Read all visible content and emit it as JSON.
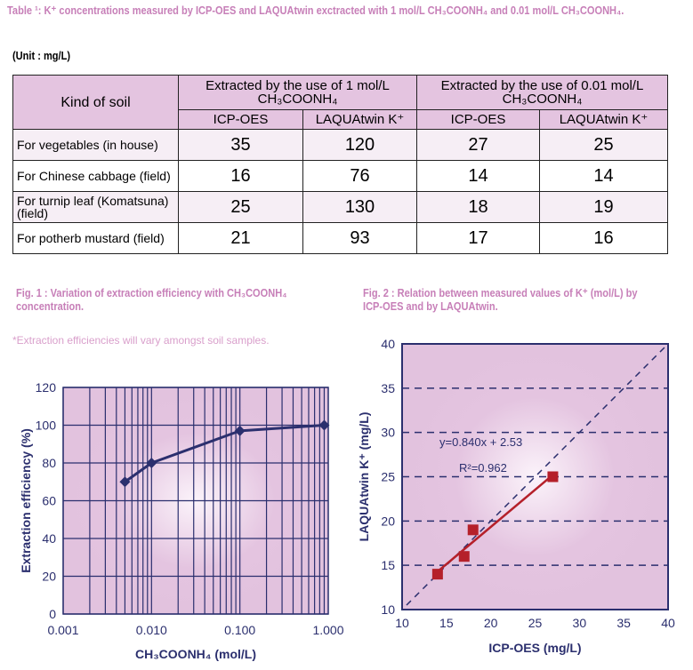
{
  "table": {
    "caption": "Table ¹: K⁺ concentrations measured by ICP-OES and LAQUAtwin exctracted with 1 mol/L CH₃COONH₄ and 0.01 mol/L CH₃COONH₄.",
    "unit": "(Unit : mg/L)",
    "col_kind": "Kind of soil",
    "group1": "Extracted by the use of 1 mol/L CH₃COONH₄",
    "group2": "Extracted by the use of 0.01 mol/L CH₃COONH₄",
    "sub": [
      "ICP-OES",
      "LAQUAtwin K⁺",
      "ICP-OES",
      "LAQUAtwin K⁺"
    ],
    "rows": [
      {
        "kind": "For vegetables (in house)",
        "v": [
          "35",
          "120",
          "27",
          "25"
        ]
      },
      {
        "kind": "For Chinese cabbage (field)",
        "v": [
          "16",
          "76",
          "14",
          "14"
        ]
      },
      {
        "kind": "For turnip leaf (Komatsuna)(field)",
        "v": [
          "25",
          "130",
          "18",
          "19"
        ]
      },
      {
        "kind": "For potherb mustard (field)",
        "v": [
          "21",
          "93",
          "17",
          "16"
        ]
      }
    ]
  },
  "fig1_caption": "Fig. 1 : Variation of extraction efficiency with CH₃COONH₄ concentration.",
  "fig1_note": "*Extraction efficiencies will vary amongst soil samples.",
  "fig2_caption": "Fig. 2 : Relation between measured values of K⁺ (mol/L) by ICP-OES and by LAQUAtwin.",
  "chart_data": [
    {
      "type": "line",
      "title": "Fig. 1",
      "xlabel": "CH₃COONH₄ (mol/L)",
      "ylabel": "Extraction efficiency (%)",
      "xscale": "log",
      "xlim": [
        0.001,
        1
      ],
      "ylim": [
        0,
        120
      ],
      "xticks": [
        "0.001",
        "0.010",
        "0.100",
        "1.000"
      ],
      "yticks": [
        "0",
        "20",
        "40",
        "60",
        "80",
        "100",
        "120"
      ],
      "x": [
        0.005,
        0.01,
        0.1,
        0.9
      ],
      "y": [
        70,
        80,
        97,
        100
      ],
      "grid": true,
      "color": "#2b2f6e"
    },
    {
      "type": "scatter",
      "title": "Fig. 2",
      "xlabel": "ICP-OES (mg/L)",
      "ylabel": "LAQUAtwin K⁺ (mg/L)",
      "xlim": [
        10,
        40
      ],
      "ylim": [
        10,
        40
      ],
      "xticks": [
        "10",
        "15",
        "20",
        "25",
        "30",
        "35",
        "40"
      ],
      "yticks": [
        "10",
        "15",
        "20",
        "25",
        "30",
        "35",
        "40"
      ],
      "x": [
        14,
        17,
        18,
        27
      ],
      "y": [
        14,
        16,
        19,
        25
      ],
      "equation": "y=0.840x + 2.53",
      "r2": "R²=0.962",
      "fit": {
        "slope": 0.84,
        "intercept": 2.53
      },
      "color": "#b5202a"
    }
  ]
}
